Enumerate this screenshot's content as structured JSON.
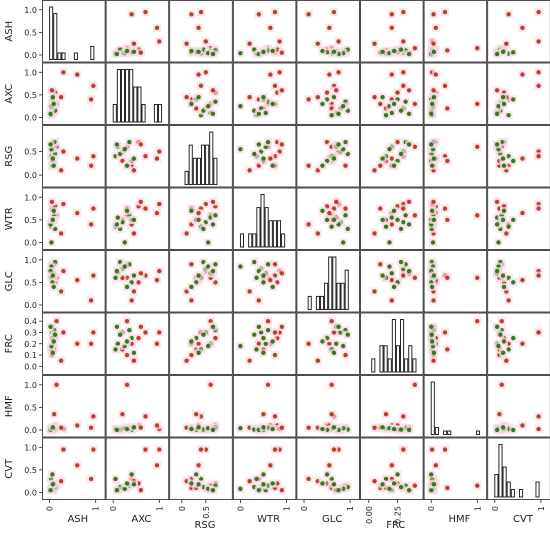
{
  "chart_data": {
    "type": "scatter",
    "variables": [
      "ASH",
      "AXC",
      "RSG",
      "WTR",
      "GLC",
      "FRC",
      "HMF",
      "CVT"
    ],
    "axis_ranges": {
      "ASH": [
        -0.1,
        1.15
      ],
      "AXC": [
        -0.1,
        1.15
      ],
      "RSG": [
        -0.2,
        1.0
      ],
      "WTR": [
        -0.1,
        1.15
      ],
      "GLC": [
        -0.1,
        1.15
      ],
      "FRC": [
        -0.05,
        0.45
      ],
      "HMF": [
        -0.1,
        1.15
      ],
      "CVT": [
        -0.1,
        1.15
      ]
    },
    "y_ticks": {
      "ASH": [
        "0.0",
        "0.5",
        "1.0"
      ],
      "AXC": [
        "0.0",
        "0.5",
        "1.0"
      ],
      "RSG": [
        "0.0",
        "0.5"
      ],
      "WTR": [
        "0.0",
        "0.5",
        "1.0"
      ],
      "GLC": [
        "0.0",
        "0.5",
        "1.0"
      ],
      "FRC": [
        "0.0",
        "0.1",
        "0.2",
        "0.3",
        "0.4"
      ],
      "HMF": [
        "0.0",
        "0.5",
        "1.0"
      ],
      "CVT": [
        "0.0",
        "0.5",
        "1.0"
      ]
    },
    "x_ticks": {
      "ASH": [
        "0",
        "1"
      ],
      "AXC": [
        "0",
        "1"
      ],
      "RSG": [
        "0",
        "0.5"
      ],
      "WTR": [
        "0",
        "1"
      ],
      "GLC": [
        "0",
        "1"
      ],
      "FRC": [
        "0.00",
        "0.25"
      ],
      "HMF": [
        "0",
        "1"
      ],
      "CVT": [
        "0",
        "1"
      ]
    },
    "series": [
      {
        "color": "#b8412a",
        "points": [
          [
            0.05,
            0.3,
            0.2,
            0.75,
            0.9,
            0.1,
            0.05,
            0.1
          ],
          [
            0.12,
            0.55,
            0.7,
            0.8,
            0.5,
            0.25,
            0.1,
            0.2
          ],
          [
            0.3,
            1.0,
            0.5,
            0.85,
            0.75,
            0.3,
            0.02,
            0.95
          ],
          [
            0.95,
            0.7,
            0.4,
            0.75,
            0.65,
            0.3,
            0.3,
            0.95
          ],
          [
            0.9,
            0.4,
            0.2,
            0.4,
            0.1,
            0.2,
            0.05,
            0.3
          ],
          [
            0.15,
            0.3,
            0.6,
            0.6,
            0.6,
            0.4,
            1.0,
            0.15
          ],
          [
            0.1,
            0.2,
            0.3,
            0.5,
            0.6,
            0.15,
            0.35,
            0.1
          ],
          [
            0.25,
            0.45,
            0.1,
            0.2,
            0.3,
            0.05,
            0.05,
            0.25
          ],
          [
            0.05,
            0.6,
            0.65,
            0.9,
            0.7,
            0.35,
            0.05,
            0.05
          ],
          [
            0.6,
            0.95,
            0.35,
            0.65,
            0.55,
            0.2,
            0.1,
            0.6
          ]
        ]
      },
      {
        "color": "#2e7d1b",
        "points": [
          [
            0.05,
            0.2,
            0.5,
            0.45,
            0.8,
            0.3,
            0.0,
            0.1
          ],
          [
            0.08,
            0.1,
            0.6,
            0.55,
            0.7,
            0.2,
            0.03,
            0.05
          ],
          [
            0.1,
            0.35,
            0.7,
            0.6,
            0.9,
            0.32,
            0.05,
            0.15
          ],
          [
            0.03,
            0.05,
            0.4,
            0.35,
            0.6,
            0.15,
            0.02,
            0.3
          ],
          [
            0.06,
            0.4,
            0.3,
            0.5,
            0.5,
            0.25,
            0.0,
            0.4
          ],
          [
            0.12,
            0.15,
            0.45,
            0.3,
            0.95,
            0.28,
            0.01,
            0.12
          ],
          [
            0.04,
            0.25,
            0.55,
            0.0,
            0.85,
            0.18,
            0.04,
            0.08
          ],
          [
            0.09,
            0.3,
            0.2,
            0.7,
            0.4,
            0.22,
            0.02,
            0.2
          ],
          [
            0.02,
            0.08,
            0.65,
            0.4,
            0.75,
            0.35,
            0.0,
            0.05
          ],
          [
            0.07,
            0.45,
            0.35,
            0.5,
            0.65,
            0.12,
            0.06,
            0.18
          ]
        ]
      }
    ]
  }
}
